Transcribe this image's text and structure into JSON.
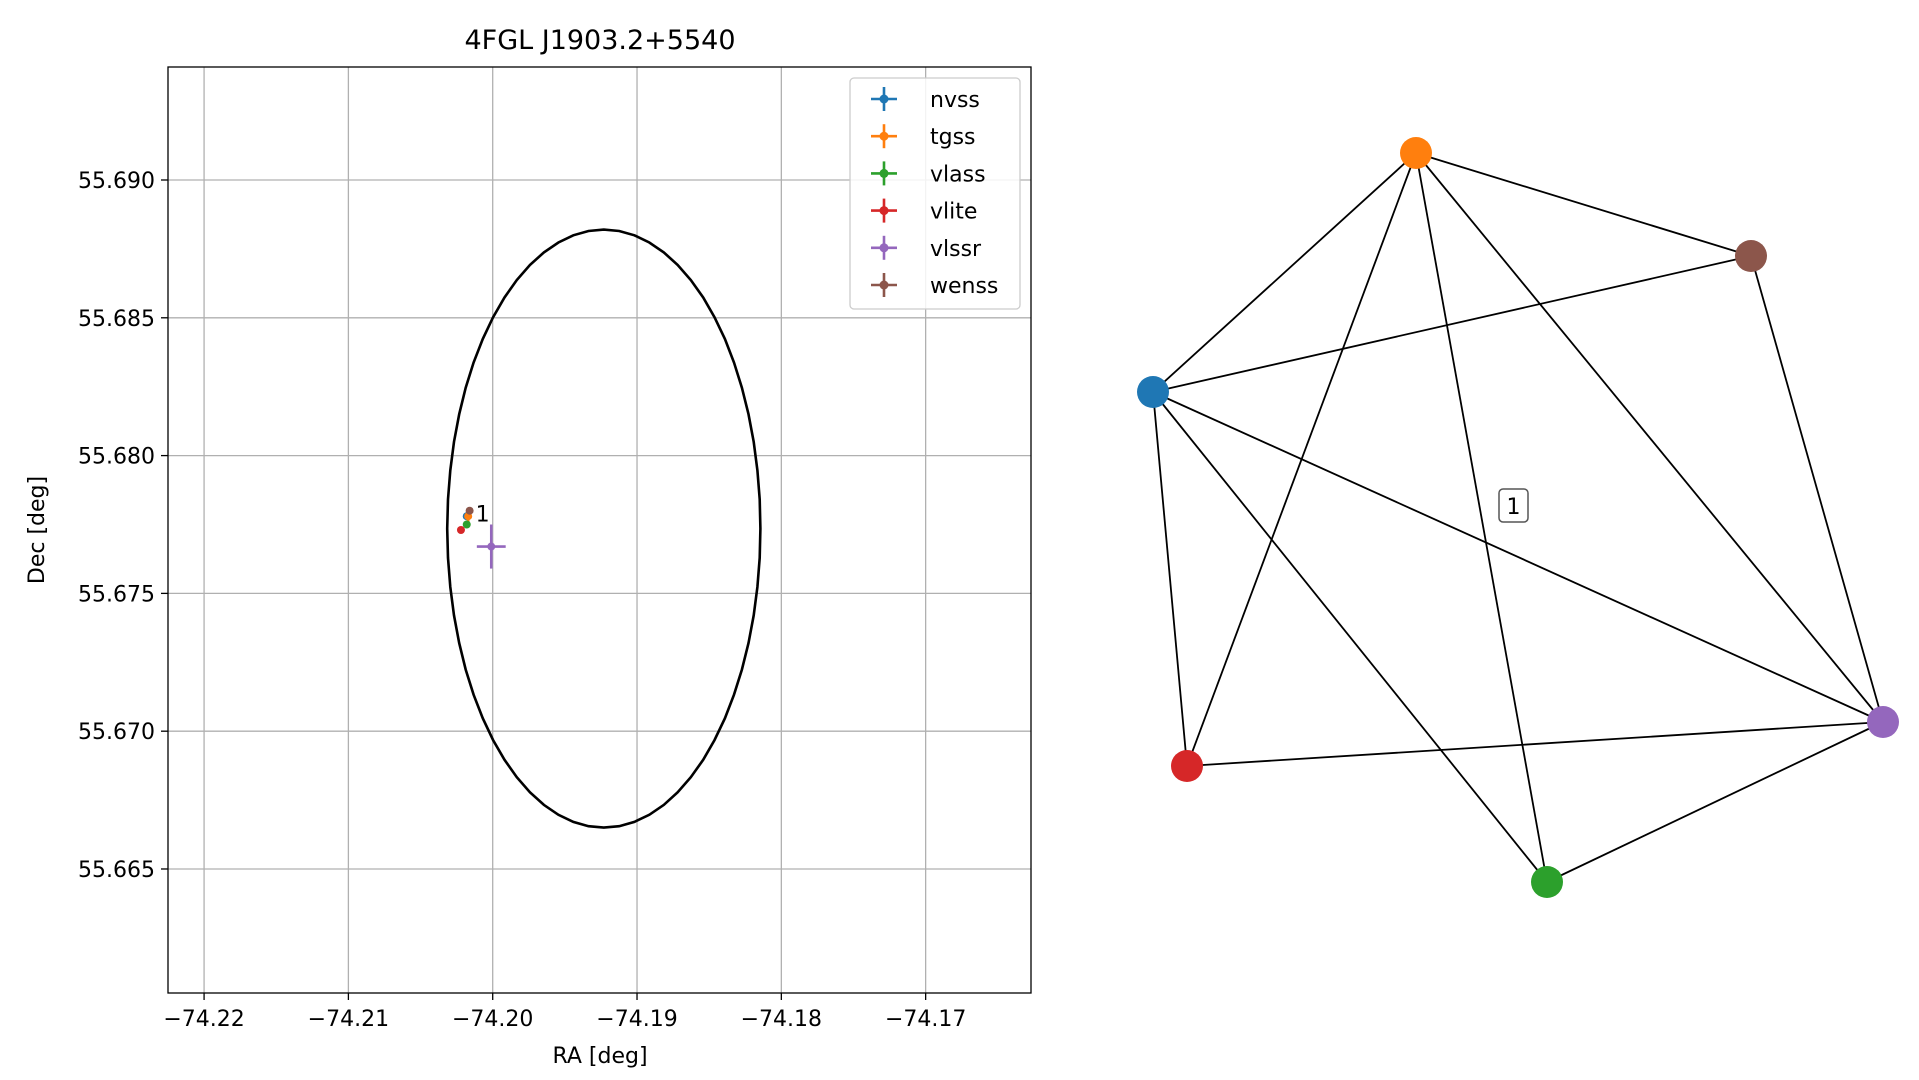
{
  "chart_data": [
    {
      "type": "scatter",
      "title": "4FGL J1903.2+5540",
      "xlabel": "RA [deg]",
      "ylabel": "Dec [deg]",
      "xlim": [
        -74.2225,
        -74.1627
      ],
      "ylim": [
        55.6605,
        55.6941
      ],
      "x_ticks": [
        -74.22,
        -74.21,
        -74.2,
        -74.19,
        -74.18,
        -74.17
      ],
      "x_tick_labels": [
        "−74.22",
        "−74.21",
        "−74.20",
        "−74.19",
        "−74.18",
        "−74.17"
      ],
      "y_ticks": [
        55.665,
        55.67,
        55.675,
        55.68,
        55.685,
        55.69
      ],
      "y_tick_labels": [
        "55.665",
        "55.670",
        "55.675",
        "55.680",
        "55.685",
        "55.690"
      ],
      "grid": true,
      "legend_position": "top-right",
      "circle": {
        "center_ra": -74.1923,
        "center_dec": 55.67735,
        "radius_deg": 0.01085,
        "color": "#000000"
      },
      "series": [
        {
          "name": "nvss",
          "color": "#1f77b4",
          "x": -74.2018,
          "y": 55.6778,
          "xerr": 0.0001,
          "yerr": 0.0001
        },
        {
          "name": "tgss",
          "color": "#ff7f0e",
          "x": -74.2017,
          "y": 55.6778,
          "xerr": 0.0002,
          "yerr": 0.0002
        },
        {
          "name": "vlass",
          "color": "#2ca02c",
          "x": -74.2018,
          "y": 55.6775,
          "xerr": 0.0001,
          "yerr": 0.0001
        },
        {
          "name": "vlite",
          "color": "#d62728",
          "x": -74.2022,
          "y": 55.6773,
          "xerr": 0.0001,
          "yerr": 0.0001
        },
        {
          "name": "vlssr",
          "color": "#9467bd",
          "x": -74.2001,
          "y": 55.6767,
          "xerr": 0.001,
          "yerr": 0.0008
        },
        {
          "name": "wenss",
          "color": "#8c564b",
          "x": -74.2016,
          "y": 55.678,
          "xerr": 0.0002,
          "yerr": 0.0001
        }
      ],
      "annotations": [
        {
          "text": "1",
          "x": -74.2007,
          "y": 55.6779
        }
      ]
    },
    {
      "type": "network",
      "nodes": [
        {
          "name": "nvss",
          "color": "#1f77b4"
        },
        {
          "name": "tgss",
          "color": "#ff7f0e"
        },
        {
          "name": "wenss",
          "color": "#8c564b"
        },
        {
          "name": "vlssr",
          "color": "#9467bd"
        },
        {
          "name": "vlass",
          "color": "#2ca02c"
        },
        {
          "name": "vlite",
          "color": "#d62728"
        }
      ],
      "edges": [
        [
          "nvss",
          "tgss"
        ],
        [
          "nvss",
          "wenss"
        ],
        [
          "nvss",
          "vlssr"
        ],
        [
          "nvss",
          "vlass"
        ],
        [
          "nvss",
          "vlite"
        ],
        [
          "tgss",
          "wenss"
        ],
        [
          "tgss",
          "vlssr"
        ],
        [
          "tgss",
          "vlass"
        ],
        [
          "tgss",
          "vlite"
        ],
        [
          "wenss",
          "vlssr"
        ],
        [
          "vlssr",
          "vlite"
        ],
        [
          "vlssr",
          "vlass"
        ]
      ],
      "group_label": "1"
    }
  ]
}
